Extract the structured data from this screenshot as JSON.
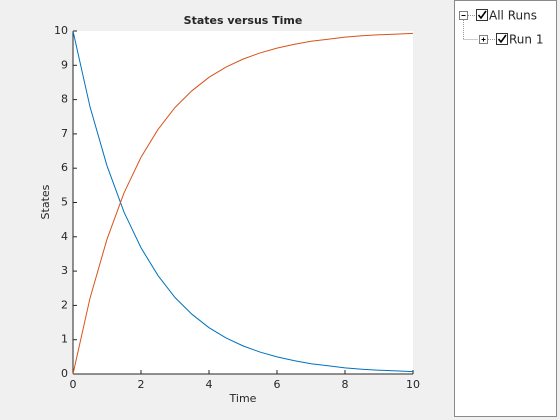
{
  "chart_data": {
    "type": "line",
    "title": "States versus Time",
    "x_label": "Time",
    "y_label": "States",
    "x": [
      0,
      0.5,
      1,
      1.5,
      2,
      2.5,
      3,
      3.5,
      4,
      4.5,
      5,
      5.5,
      6,
      6.5,
      7,
      7.5,
      8,
      8.5,
      9,
      9.5,
      10
    ],
    "series": [
      {
        "color": "#0072bd",
        "values": [
          10,
          7.79,
          6.07,
          4.72,
          3.68,
          2.87,
          2.23,
          1.74,
          1.35,
          1.05,
          0.82,
          0.64,
          0.5,
          0.39,
          0.3,
          0.24,
          0.18,
          0.14,
          0.11,
          0.09,
          0.07
        ]
      },
      {
        "color": "#d95319",
        "values": [
          0,
          2.21,
          3.93,
          5.28,
          6.32,
          7.13,
          7.77,
          8.26,
          8.65,
          8.95,
          9.18,
          9.36,
          9.5,
          9.61,
          9.7,
          9.76,
          9.82,
          9.86,
          9.89,
          9.91,
          9.93
        ]
      }
    ],
    "xlim": [
      0,
      10
    ],
    "xticks": [
      0,
      2,
      4,
      6,
      8,
      10
    ],
    "ylim": [
      0,
      10
    ],
    "yticks": [
      0,
      1,
      2,
      3,
      4,
      5,
      6,
      7,
      8,
      9,
      10
    ]
  },
  "tree": {
    "root": "All Runs",
    "child": "Run 1"
  }
}
